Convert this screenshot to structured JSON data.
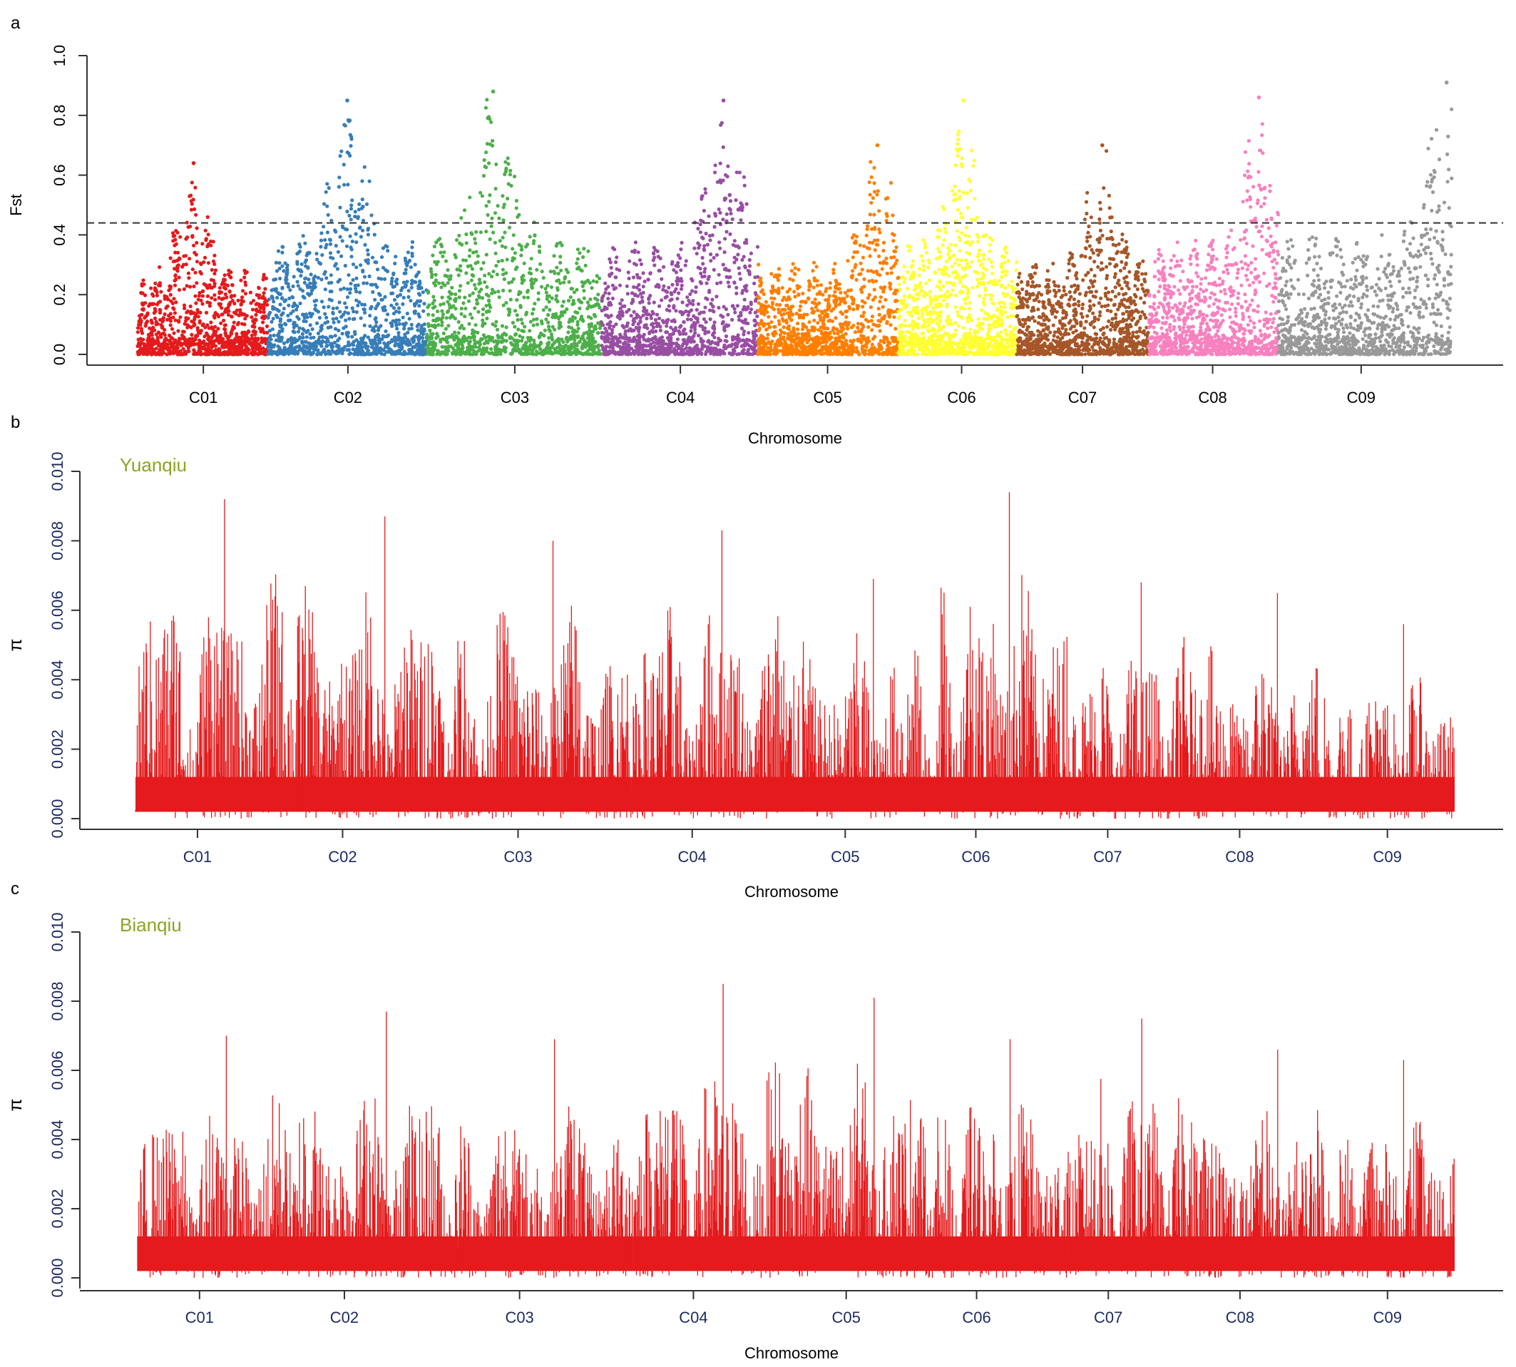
{
  "figure": {
    "panels": [
      "a",
      "b",
      "c"
    ]
  },
  "chart_data": [
    {
      "panel": "a",
      "type": "scatter",
      "title": "",
      "ylabel": "Fst",
      "xlabel": "Chromosome",
      "ylim": [
        0,
        1.0
      ],
      "yticks": [
        0.0,
        0.2,
        0.4,
        0.6,
        0.8,
        1.0
      ],
      "ytick_labels": [
        "0.0",
        "0.2",
        "0.4",
        "0.6",
        "0.8",
        "1.0"
      ],
      "threshold": 0.44,
      "chromosomes": [
        {
          "name": "C01",
          "color": "#e41a1c",
          "span": [
            0.0,
            0.099
          ],
          "label_at": 0.05,
          "max": 0.64,
          "peak_at": 0.43
        },
        {
          "name": "C02",
          "color": "#377eb8",
          "span": [
            0.099,
            0.22
          ],
          "label_at": 0.16,
          "max": 0.85,
          "peak_at": 0.5
        },
        {
          "name": "C03",
          "color": "#4daf4a",
          "span": [
            0.22,
            0.353
          ],
          "label_at": 0.287,
          "max": 0.88,
          "peak_at": 0.38
        },
        {
          "name": "C04",
          "color": "#984ea3",
          "span": [
            0.353,
            0.472
          ],
          "label_at": 0.413,
          "max": 0.85,
          "peak_at": 0.78
        },
        {
          "name": "C05",
          "color": "#ff7f00",
          "span": [
            0.472,
            0.579
          ],
          "label_at": 0.525,
          "max": 0.7,
          "peak_at": 0.85
        },
        {
          "name": "C06",
          "color": "#ffff33",
          "span": [
            0.579,
            0.669
          ],
          "label_at": 0.627,
          "max": 0.85,
          "peak_at": 0.55
        },
        {
          "name": "C07",
          "color": "#a65628",
          "span": [
            0.669,
            0.769
          ],
          "label_at": 0.719,
          "max": 0.7,
          "peak_at": 0.65
        },
        {
          "name": "C08",
          "color": "#f781bf",
          "span": [
            0.769,
            0.868
          ],
          "label_at": 0.818,
          "max": 0.86,
          "peak_at": 0.85
        },
        {
          "name": "C09",
          "color": "#999999",
          "span": [
            0.868,
            1.0
          ],
          "label_at": 0.931,
          "max": 0.91,
          "peak_at": 0.97
        }
      ]
    },
    {
      "panel": "b",
      "type": "line",
      "annotation": "Yuanqiu",
      "ylabel": "π",
      "xlabel": "Chromosome",
      "ylim": [
        0,
        0.01
      ],
      "yticks": [
        0.0,
        0.002,
        0.004,
        0.006,
        0.008,
        0.01
      ],
      "ytick_labels": [
        "0.000",
        "0.002",
        "0.004",
        "0.006",
        "0.008",
        "0.010"
      ],
      "color": "#e41a1c",
      "chromosomes": [
        {
          "name": "C01",
          "label_at": 0.047,
          "max": 0.0092
        },
        {
          "name": "C02",
          "label_at": 0.157,
          "max": 0.0087
        },
        {
          "name": "C03",
          "label_at": 0.29,
          "max": 0.008
        },
        {
          "name": "C04",
          "label_at": 0.422,
          "max": 0.0083
        },
        {
          "name": "C05",
          "label_at": 0.538,
          "max": 0.0069
        },
        {
          "name": "C06",
          "label_at": 0.637,
          "max": 0.0094
        },
        {
          "name": "C07",
          "label_at": 0.737,
          "max": 0.0068
        },
        {
          "name": "C08",
          "label_at": 0.837,
          "max": 0.0065
        },
        {
          "name": "C09",
          "label_at": 0.949,
          "max": 0.0056
        }
      ]
    },
    {
      "panel": "c",
      "type": "line",
      "annotation": "Bianqiu",
      "ylabel": "π",
      "xlabel": "Chromosome",
      "ylim": [
        0,
        0.01
      ],
      "yticks": [
        0.0,
        0.002,
        0.004,
        0.006,
        0.008,
        0.01
      ],
      "ytick_labels": [
        "0.000",
        "0.002",
        "0.004",
        "0.006",
        "0.008",
        "0.010"
      ],
      "color": "#e41a1c",
      "chromosomes": [
        {
          "name": "C01",
          "label_at": 0.047,
          "max": 0.007
        },
        {
          "name": "C02",
          "label_at": 0.157,
          "max": 0.0077
        },
        {
          "name": "C03",
          "label_at": 0.29,
          "max": 0.0069
        },
        {
          "name": "C04",
          "label_at": 0.422,
          "max": 0.0085
        },
        {
          "name": "C05",
          "label_at": 0.538,
          "max": 0.0081
        },
        {
          "name": "C06",
          "label_at": 0.637,
          "max": 0.0069
        },
        {
          "name": "C07",
          "label_at": 0.737,
          "max": 0.0075
        },
        {
          "name": "C08",
          "label_at": 0.837,
          "max": 0.0066
        },
        {
          "name": "C09",
          "label_at": 0.949,
          "max": 0.0063
        }
      ]
    }
  ]
}
